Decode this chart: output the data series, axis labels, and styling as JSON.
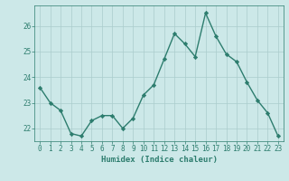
{
  "x": [
    0,
    1,
    2,
    3,
    4,
    5,
    6,
    7,
    8,
    9,
    10,
    11,
    12,
    13,
    14,
    15,
    16,
    17,
    18,
    19,
    20,
    21,
    22,
    23
  ],
  "y": [
    23.6,
    23.0,
    22.7,
    21.8,
    21.7,
    22.3,
    22.5,
    22.5,
    22.0,
    22.4,
    23.3,
    23.7,
    24.7,
    25.7,
    25.3,
    24.8,
    26.5,
    25.6,
    24.9,
    24.6,
    23.8,
    23.1,
    22.6,
    21.7
  ],
  "line_color": "#2d7d6e",
  "marker": "D",
  "marker_size": 2.2,
  "bg_color": "#cce8e8",
  "grid_color": "#aacccc",
  "xlabel": "Humidex (Indice chaleur)",
  "xlim": [
    -0.5,
    23.5
  ],
  "ylim": [
    21.5,
    26.8
  ],
  "yticks": [
    22,
    23,
    24,
    25,
    26
  ],
  "xticks": [
    0,
    1,
    2,
    3,
    4,
    5,
    6,
    7,
    8,
    9,
    10,
    11,
    12,
    13,
    14,
    15,
    16,
    17,
    18,
    19,
    20,
    21,
    22,
    23
  ],
  "xlabel_fontsize": 6.5,
  "tick_fontsize": 5.5,
  "line_width": 1.0
}
